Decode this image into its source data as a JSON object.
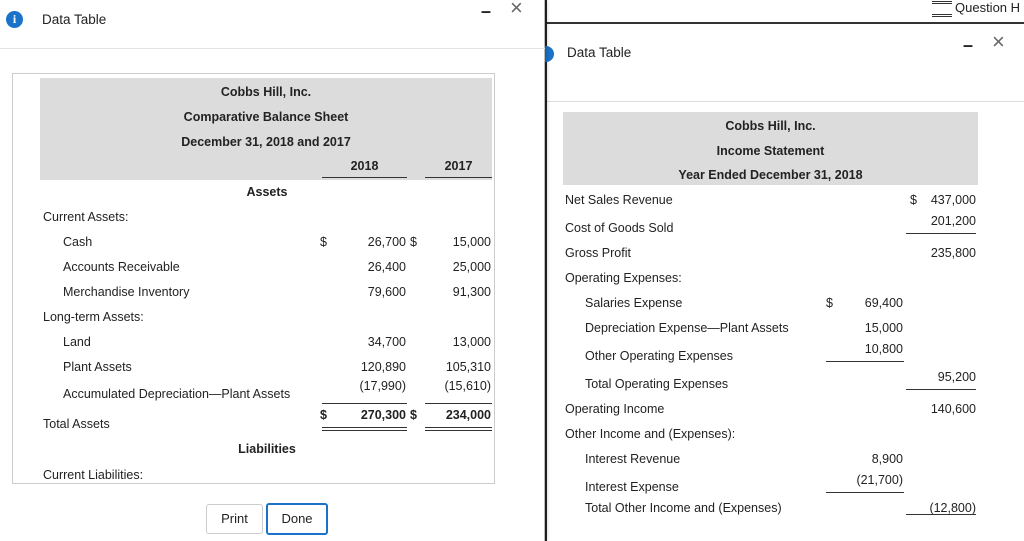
{
  "left": {
    "title": "Data Table",
    "table": {
      "company": "Cobbs Hill, Inc.",
      "statement": "Comparative Balance Sheet",
      "period": "December 31, 2018 and 2017",
      "columns": [
        "2018",
        "2017"
      ],
      "rows": [
        {
          "heading": "Assets"
        },
        {
          "label": "Current Assets:"
        },
        {
          "label": "Cash",
          "cur1": "$",
          "v1": "26,700",
          "cur2": "$",
          "v2": "15,000"
        },
        {
          "label": "Accounts Receivable",
          "v1": "26,400",
          "v2": "25,000"
        },
        {
          "label": "Merchandise Inventory",
          "v1": "79,600",
          "v2": "91,300"
        },
        {
          "label": "Long-term Assets:"
        },
        {
          "label": "Land",
          "v1": "34,700",
          "v2": "13,000"
        },
        {
          "label": "Plant Assets",
          "v1": "120,890",
          "v2": "105,310"
        },
        {
          "label": "Accumulated Depreciation—Plant Assets",
          "v1": "(17,990)",
          "v2": "(15,610)"
        },
        {
          "label": "Total Assets",
          "cur1": "$",
          "v1": "270,300",
          "cur2": "$",
          "v2": "234,000"
        },
        {
          "heading": "Liabilities"
        },
        {
          "label": "Current Liabilities:"
        }
      ]
    },
    "buttons": [
      "Print",
      "Done"
    ]
  },
  "right": {
    "toolbar": "Question H",
    "title": "Data Table",
    "table": {
      "company": "Cobbs Hill, Inc.",
      "statement": "Income Statement",
      "period": "Year Ended December 31, 2018",
      "rows": [
        {
          "label": "Net Sales Revenue",
          "cur2": "$",
          "v2": "437,000"
        },
        {
          "label": "Cost of Goods Sold",
          "v2": "201,200"
        },
        {
          "label": "Gross Profit",
          "v2": "235,800"
        },
        {
          "label": "Operating Expenses:"
        },
        {
          "label": "Salaries Expense",
          "cur1": "$",
          "v1": "69,400"
        },
        {
          "label": "Depreciation Expense—Plant Assets",
          "v1": "15,000"
        },
        {
          "label": "Other Operating Expenses",
          "v1": "10,800"
        },
        {
          "label": "Total Operating Expenses",
          "v2": "95,200"
        },
        {
          "label": "Operating Income",
          "v2": "140,600"
        },
        {
          "label": "Other Income and (Expenses):"
        },
        {
          "label": "Interest Revenue",
          "v1": "8,900"
        },
        {
          "label": "Interest Expense",
          "v1": "(21,700)"
        },
        {
          "label": "Total Other Income and (Expenses)",
          "v2": "(12,800)"
        }
      ]
    }
  }
}
